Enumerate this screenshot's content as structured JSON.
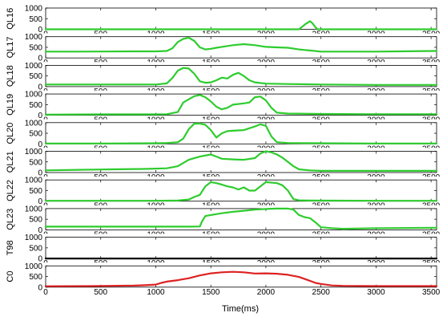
{
  "chart_data": {
    "type": "line",
    "layout": "stacked-subplots",
    "xlabel": "Time(ms)",
    "xlim": [
      0,
      3550
    ],
    "x_ticks": [
      0,
      500,
      1000,
      1500,
      2000,
      2500,
      3000,
      3500
    ],
    "grid": false,
    "panels": [
      {
        "ylabel": "QL16",
        "ylim": [
          0,
          1000
        ],
        "y_ticks": [
          0,
          500,
          1000
        ],
        "color": "#2ecc2e",
        "x": [
          0,
          2300,
          2330,
          2360,
          2400,
          2420,
          2450,
          2470,
          3550
        ],
        "y": [
          0,
          0,
          120,
          250,
          380,
          300,
          100,
          0,
          0
        ]
      },
      {
        "ylabel": "QL17",
        "ylim": [
          0,
          1000
        ],
        "y_ticks": [
          0,
          500,
          1000
        ],
        "color": "#2ecc2e",
        "x": [
          0,
          300,
          800,
          1000,
          1100,
          1150,
          1200,
          1250,
          1300,
          1350,
          1400,
          1450,
          1500,
          1550,
          1600,
          1700,
          1800,
          1900,
          2000,
          2100,
          2200,
          2300,
          2400,
          2500,
          3000,
          3550
        ],
        "y": [
          300,
          300,
          310,
          310,
          330,
          450,
          750,
          900,
          950,
          800,
          500,
          400,
          430,
          480,
          520,
          600,
          650,
          600,
          520,
          500,
          480,
          400,
          350,
          300,
          300,
          330
        ]
      },
      {
        "ylabel": "QL18",
        "ylim": [
          0,
          1000
        ],
        "y_ticks": [
          0,
          500,
          1000
        ],
        "color": "#2ecc2e",
        "x": [
          0,
          500,
          1000,
          1100,
          1150,
          1200,
          1250,
          1300,
          1350,
          1400,
          1450,
          1500,
          1550,
          1600,
          1650,
          1700,
          1750,
          1800,
          1850,
          1900,
          2000,
          2200,
          2500,
          3000,
          3550
        ],
        "y": [
          100,
          100,
          100,
          150,
          400,
          750,
          880,
          850,
          600,
          250,
          180,
          200,
          300,
          420,
          380,
          550,
          650,
          500,
          300,
          200,
          140,
          120,
          100,
          80,
          80
        ]
      },
      {
        "ylabel": "QL19",
        "ylim": [
          0,
          1000
        ],
        "y_ticks": [
          0,
          500,
          1000
        ],
        "color": "#2ecc2e",
        "x": [
          0,
          500,
          1000,
          1100,
          1200,
          1250,
          1300,
          1350,
          1400,
          1450,
          1500,
          1550,
          1600,
          1650,
          1700,
          1800,
          1850,
          1900,
          1950,
          2000,
          2050,
          2100,
          2200,
          2500,
          3000,
          3550
        ],
        "y": [
          30,
          40,
          40,
          50,
          150,
          600,
          750,
          900,
          950,
          850,
          650,
          400,
          280,
          350,
          500,
          560,
          600,
          850,
          880,
          700,
          350,
          120,
          80,
          60,
          50,
          50
        ]
      },
      {
        "ylabel": "QL20",
        "ylim": [
          0,
          1000
        ],
        "y_ticks": [
          0,
          500,
          1000
        ],
        "color": "#2ecc2e",
        "x": [
          0,
          500,
          1000,
          1100,
          1200,
          1250,
          1300,
          1350,
          1400,
          1450,
          1500,
          1550,
          1600,
          1650,
          1700,
          1800,
          1900,
          1950,
          2000,
          2050,
          2100,
          2200,
          2500,
          3000,
          3550
        ],
        "y": [
          20,
          20,
          30,
          40,
          80,
          250,
          700,
          950,
          960,
          900,
          650,
          300,
          500,
          600,
          620,
          650,
          820,
          920,
          850,
          350,
          80,
          40,
          30,
          20,
          20
        ]
      },
      {
        "ylabel": "QL21",
        "ylim": [
          0,
          1000
        ],
        "y_ticks": [
          0,
          500,
          1000
        ],
        "color": "#2ecc2e",
        "x": [
          0,
          300,
          600,
          900,
          1100,
          1200,
          1250,
          1300,
          1400,
          1500,
          1550,
          1600,
          1700,
          1800,
          1900,
          1950,
          2000,
          2050,
          2100,
          2150,
          2200,
          2250,
          2300,
          2400,
          2500,
          2800,
          3200,
          3550
        ],
        "y": [
          100,
          130,
          150,
          170,
          200,
          300,
          450,
          600,
          750,
          850,
          750,
          650,
          620,
          600,
          680,
          900,
          1000,
          950,
          850,
          700,
          500,
          300,
          150,
          100,
          80,
          80,
          80,
          80
        ]
      },
      {
        "ylabel": "QL22",
        "ylim": [
          0,
          1000
        ],
        "y_ticks": [
          0,
          500,
          1000
        ],
        "color": "#2ecc2e",
        "x": [
          0,
          500,
          1000,
          1200,
          1300,
          1350,
          1400,
          1450,
          1500,
          1550,
          1600,
          1650,
          1700,
          1750,
          1800,
          1850,
          1900,
          1950,
          2000,
          2100,
          2150,
          2200,
          2250,
          2300,
          2400,
          3000,
          3550
        ],
        "y": [
          20,
          20,
          20,
          30,
          80,
          200,
          300,
          700,
          900,
          850,
          780,
          700,
          650,
          550,
          650,
          500,
          500,
          700,
          900,
          850,
          750,
          500,
          100,
          40,
          30,
          20,
          20
        ]
      },
      {
        "ylabel": "QL23",
        "ylim": [
          0,
          1000
        ],
        "y_ticks": [
          0,
          500,
          1000
        ],
        "color": "#2ecc2e",
        "x": [
          0,
          500,
          1000,
          1300,
          1400,
          1420,
          1450,
          1500,
          1600,
          1700,
          1800,
          1900,
          2000,
          2100,
          2200,
          2250,
          2300,
          2350,
          2400,
          2450,
          2500,
          2600,
          2700,
          3000,
          3550
        ],
        "y": [
          150,
          150,
          150,
          150,
          160,
          400,
          650,
          700,
          780,
          850,
          900,
          950,
          980,
          1000,
          1000,
          950,
          700,
          600,
          550,
          350,
          120,
          80,
          50,
          80,
          100
        ]
      },
      {
        "ylabel": "T98",
        "ylim": [
          0,
          1000
        ],
        "y_ticks": [
          0,
          500,
          1000
        ],
        "color": "#000000",
        "x": [
          0,
          3550
        ],
        "y": [
          0,
          0
        ]
      },
      {
        "ylabel": "C0",
        "ylim": [
          0,
          1000
        ],
        "y_ticks": [
          0,
          500,
          1000
        ],
        "color": "#dd2222",
        "x": [
          0,
          400,
          800,
          900,
          1000,
          1050,
          1100,
          1200,
          1300,
          1400,
          1500,
          1600,
          1700,
          1800,
          1900,
          2000,
          2100,
          2200,
          2300,
          2400,
          2450,
          2500,
          2600,
          2700,
          3000,
          3550
        ],
        "y": [
          40,
          50,
          70,
          90,
          120,
          200,
          260,
          330,
          420,
          550,
          650,
          700,
          720,
          700,
          640,
          650,
          630,
          580,
          480,
          300,
          200,
          150,
          80,
          60,
          50,
          50
        ]
      }
    ]
  }
}
